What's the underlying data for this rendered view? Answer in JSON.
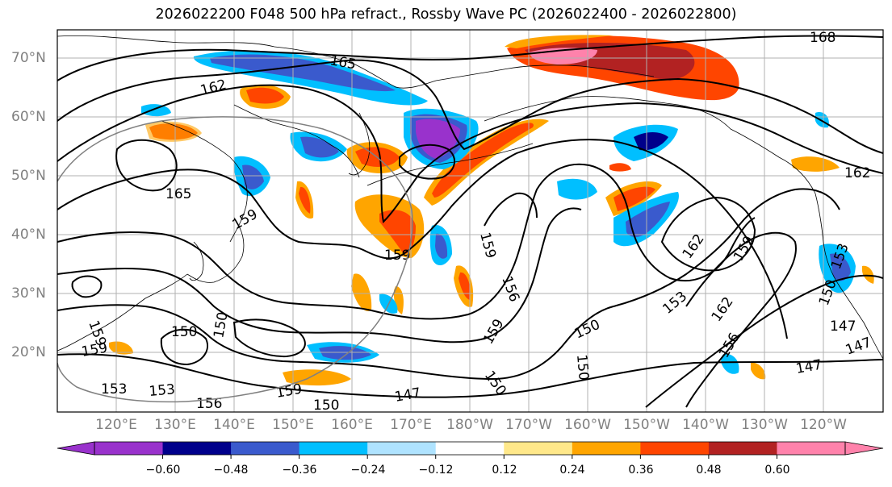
{
  "title": "2026022200 F048 500 hPa refract., Rossby Wave PC (2026022400 - 2026022800)",
  "lat_labels": [
    "70°N",
    "60°N",
    "50°N",
    "40°N",
    "30°N",
    "20°N"
  ],
  "lon_labels": [
    "120°E",
    "130°E",
    "140°E",
    "150°E",
    "160°E",
    "170°E",
    "180°W",
    "170°W",
    "160°W",
    "150°W",
    "140°W",
    "130°W",
    "120°W"
  ],
  "colorbar": {
    "colors": [
      "#9932cc",
      "#00008b",
      "#3a5acd",
      "#00bfff",
      "#afe3ff",
      "#ffffff",
      "#ffe88a",
      "#ffa500",
      "#ff4500",
      "#b22222",
      "#ff82ab"
    ],
    "tick_labels": [
      "−0.60",
      "−0.48",
      "−0.36",
      "−0.24",
      "−0.12",
      "0.12",
      "0.24",
      "0.36",
      "0.48",
      "0.60"
    ],
    "tick_values": [
      -0.6,
      -0.48,
      -0.36,
      -0.24,
      -0.12,
      0.12,
      0.24,
      0.36,
      0.48,
      0.6
    ]
  },
  "contour_labels": [
    "165",
    "162",
    "168",
    "165",
    "159",
    "156",
    "159",
    "162",
    "159",
    "153",
    "150",
    "162",
    "156",
    "147",
    "150",
    "153",
    "156",
    "159",
    "150",
    "147",
    "150",
    "147",
    "150",
    "162",
    "153",
    "159",
    "150",
    "153",
    "159",
    "159",
    "150",
    "159",
    "147"
  ],
  "map": {
    "lon_range": [
      110,
      250
    ],
    "lat_range": [
      10,
      75
    ],
    "contour_interval": 3,
    "contour_variable": "500 hPa height (dam)"
  }
}
